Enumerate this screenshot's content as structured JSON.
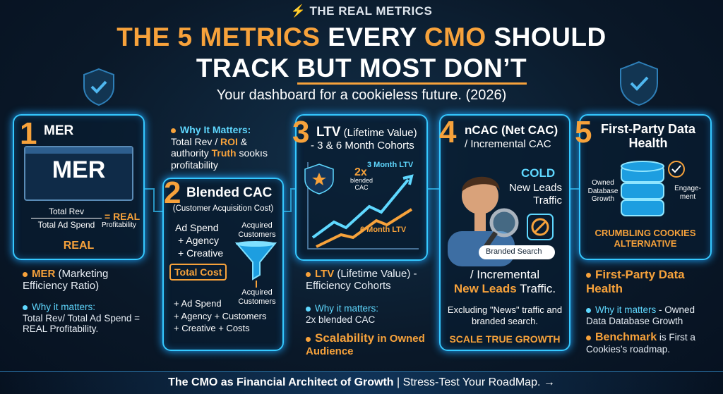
{
  "header": {
    "brand": "THE REAL METRICS",
    "title_line1": [
      "THE 5 METRICS",
      "EVERY",
      "CMO",
      "SHOULD"
    ],
    "title_line2": [
      "TRACK",
      "BUT MOST DON’T"
    ],
    "subtitle": "Your dashboard for a cookieless future. (2026)"
  },
  "cards": [
    {
      "number": "1",
      "title": "MER",
      "screen": "MER",
      "numerator": "Total Rev",
      "denominator": "Total Ad Spend",
      "equals": "= REAL",
      "equals_sub": "Profitability",
      "footer": "REAL",
      "below": {
        "term": "MER",
        "term_rest": "(Marketing Efficiency Ratio)",
        "why": "Why it matters:",
        "why_text": "Total Rev/ Total Ad Spend = REAL Profitability."
      }
    },
    {
      "note_title": "Why It Matters:",
      "note_parts": [
        "Total Rev / ",
        "ROI",
        " & authority ",
        "Truth",
        " sookıs profitability"
      ],
      "number": "2",
      "title": "Blended CAC",
      "subtitle": "(Customer Acquisition Cost)",
      "cost_items": [
        "Ad Spend",
        "+ Agency",
        "+ Creative"
      ],
      "total": "Total Cost",
      "acquired_top": "Acquired Customers",
      "acquired_bottom": "Acquired Customers",
      "bottom_items": [
        "+ Ad Spend",
        "+ Agency + Customers",
        "+ Creative + Costs"
      ]
    },
    {
      "number": "3",
      "title": "LTV",
      "title_rest": "(Lifetime Value)",
      "title_line2": "- 3 & 6 Month Cohorts",
      "badge": "2x",
      "badge_sub": "blended CAC",
      "line_top": "3 Month LTV",
      "line_bottom": "6 Month LTV",
      "below": {
        "term": "LTV",
        "term_rest": "(Lifetime Value) - Efficiency Cohorts",
        "why": "Why it matters:",
        "why_text": "2x blended CAC",
        "extra": "Scalability",
        "extra_rest": "in Owned Audience"
      }
    },
    {
      "number": "4",
      "title": "nCAC (Net CAC)",
      "title_line2": "/ Incremental CAC",
      "cold": "COLD",
      "cold_text": "New Leads Traffic",
      "search": "Branded Search",
      "below": {
        "line1": "/ Incremental",
        "term": "New Leads",
        "term_rest": "Traffic.",
        "text": "Excluding \"News\" traffic and branded search.",
        "footer": "SCALE TRUE GROWTH"
      }
    },
    {
      "number": "5",
      "title": "First-Party Data Health",
      "left_label": "Owned Database Growth",
      "right_label": "Engage-ment",
      "footer": "CRUMBLING COOKIES ALTERNATIVE",
      "below": {
        "term": "First-Party Data Health",
        "why": "Why it matters",
        "why_text": "- Owned Data Database Growth",
        "extra": "Benchmark",
        "extra_rest": "is First a Cookies’s roadmap."
      }
    }
  ],
  "footer": {
    "left": "The CMO as Financial Architect of Growth",
    "sep": "|",
    "right": "Stress-Test Your RoadMap. →"
  }
}
